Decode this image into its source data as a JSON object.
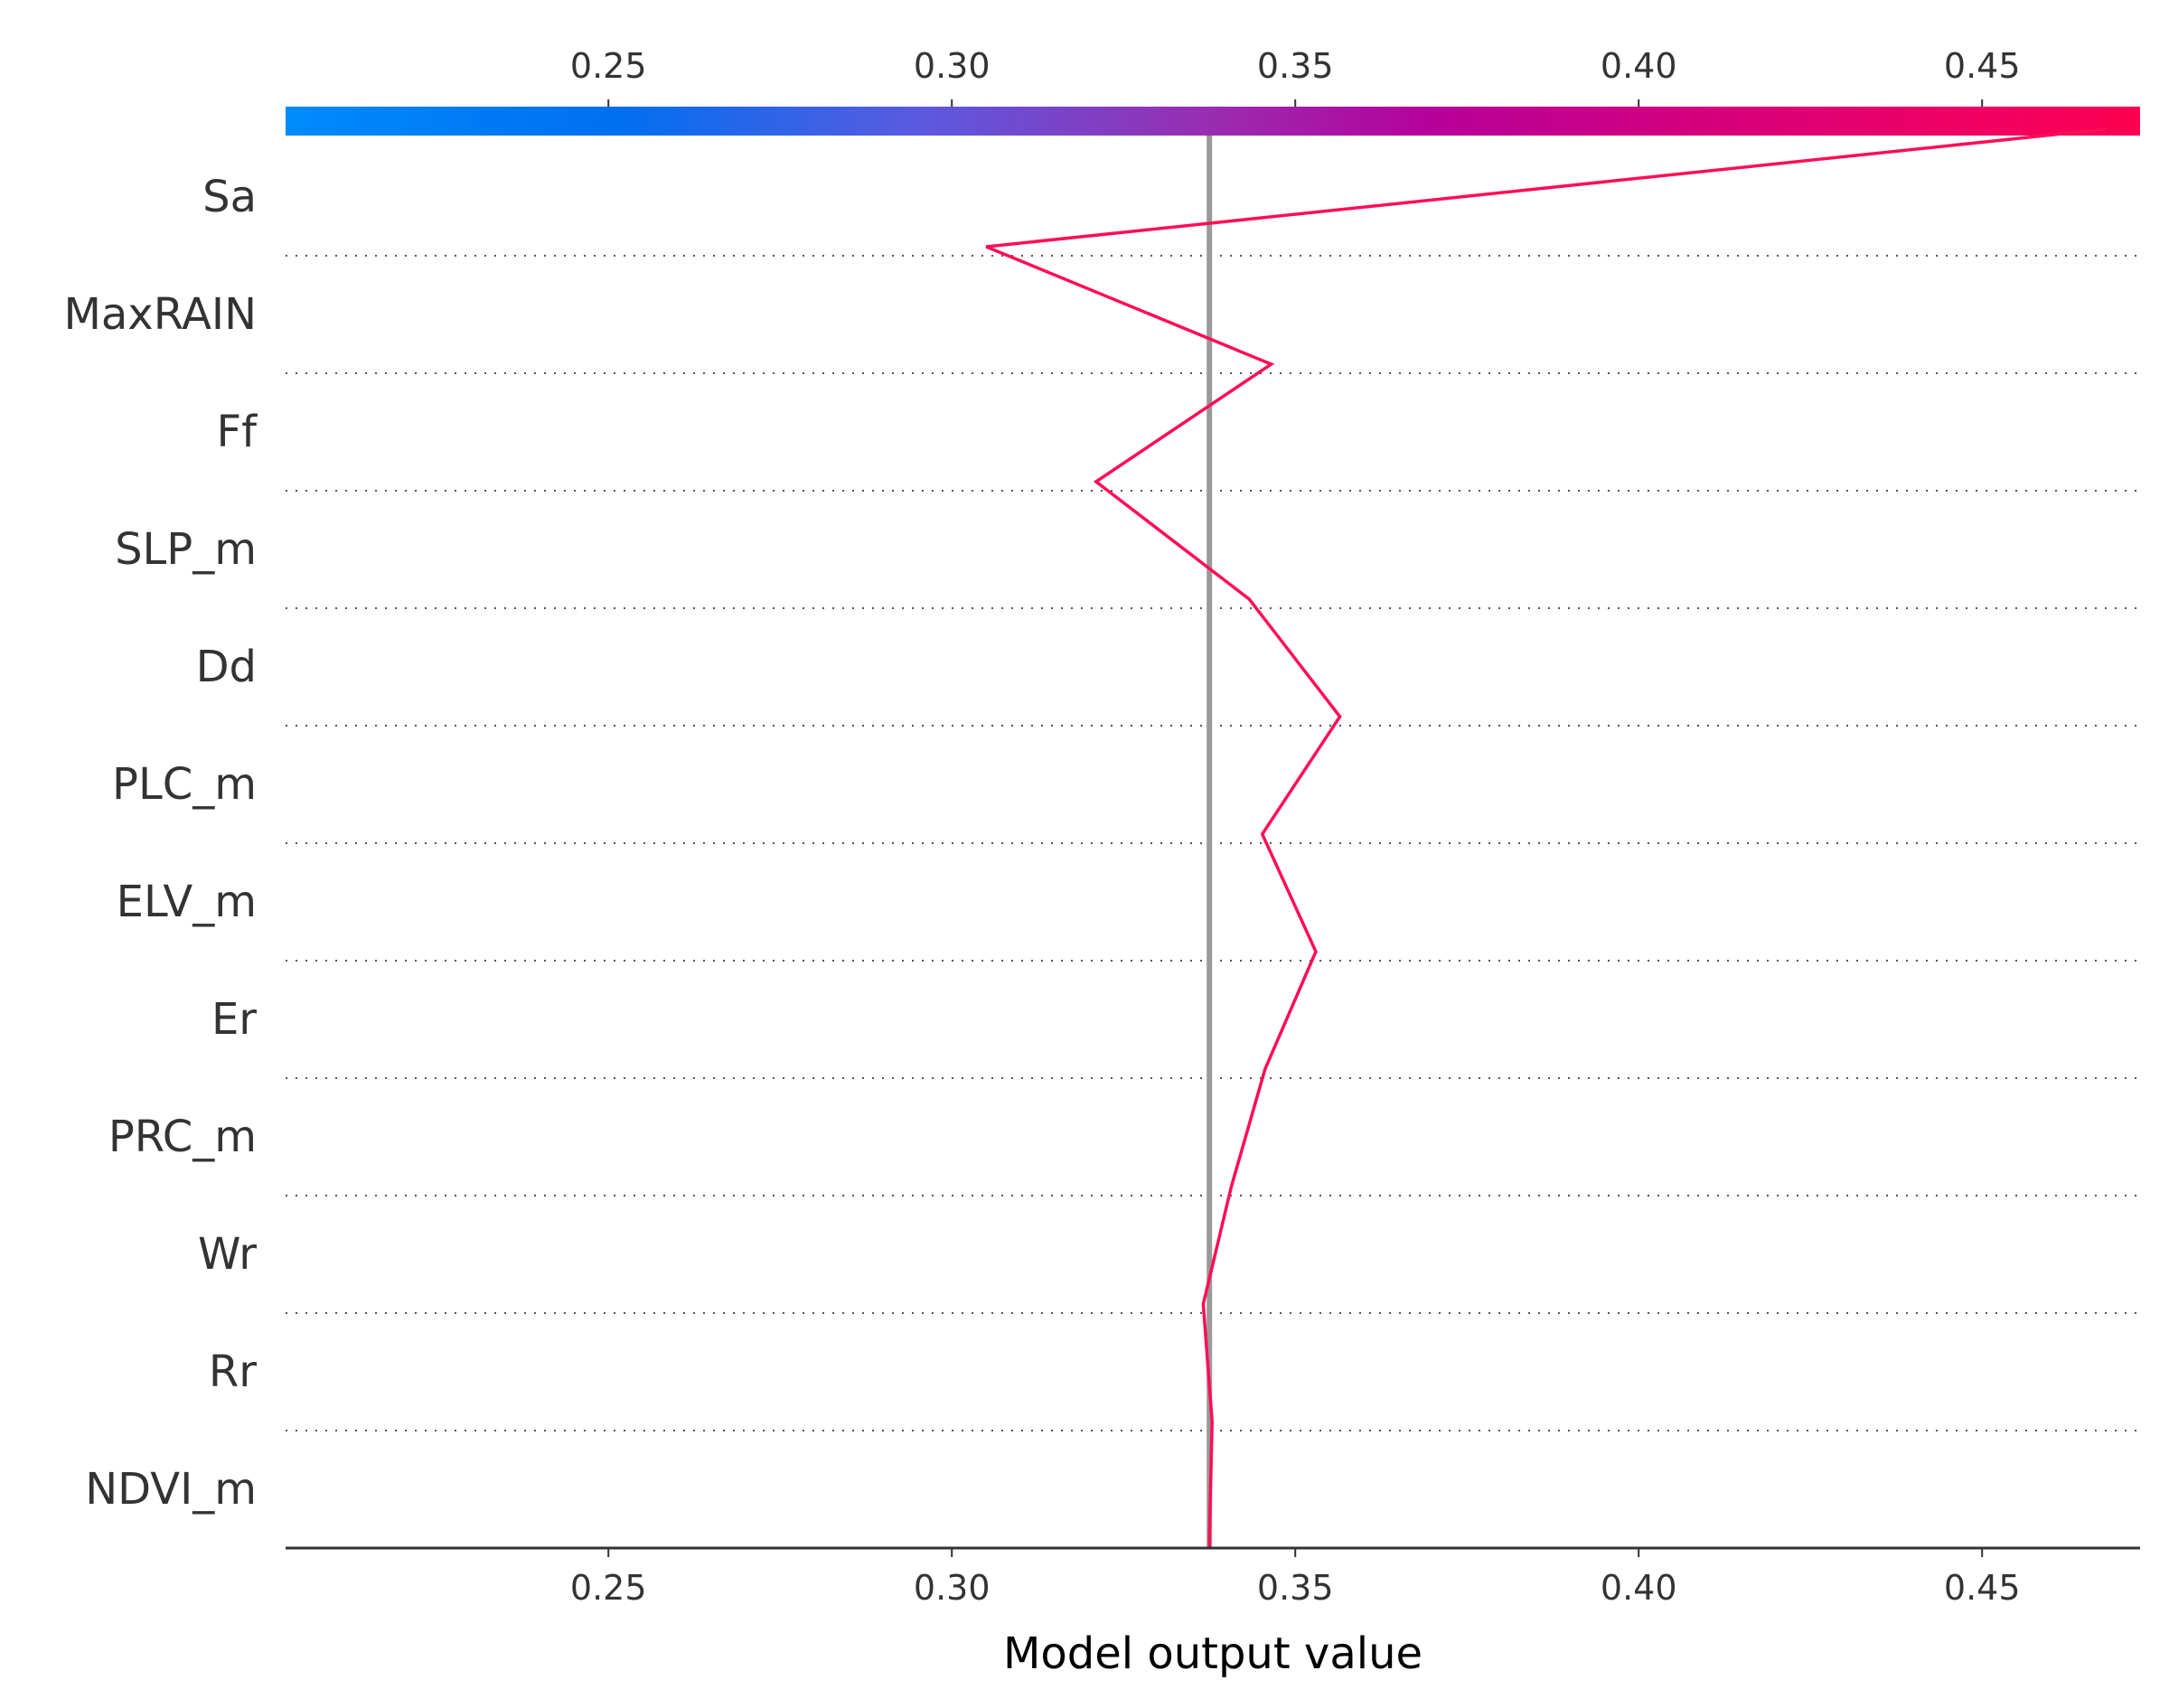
{
  "chart_data": {
    "type": "line",
    "subtype": "shap-decision-plot",
    "title": "",
    "xlabel": "Model output value",
    "ylabel": "",
    "xlim": [
      0.203,
      0.473
    ],
    "base_value": 0.3375,
    "x_ticks": [
      "0.25",
      "0.30",
      "0.35",
      "0.40",
      "0.45"
    ],
    "features": [
      "Sa",
      "MaxRAIN",
      "Ff",
      "SLP_m",
      "Dd",
      "PLC_m",
      "ELV_m",
      "Er",
      "PRC_m",
      "Wr",
      "Rr",
      "NDVI_m"
    ],
    "cumulative_values": [
      0.468,
      0.305,
      0.3465,
      0.321,
      0.3433,
      0.3565,
      0.3452,
      0.353,
      0.3456,
      0.3407,
      0.3366,
      0.3379,
      0.3375
    ],
    "colorbar": {
      "range": [
        0.203,
        0.473
      ],
      "ticks": [
        "0.25",
        "0.30",
        "0.35",
        "0.40",
        "0.45"
      ],
      "colors": [
        "#008bfb",
        "#ff0051"
      ]
    },
    "line_color": "#ff0d57",
    "base_line_color": "#999999",
    "grid": "dotted-horizontal"
  }
}
